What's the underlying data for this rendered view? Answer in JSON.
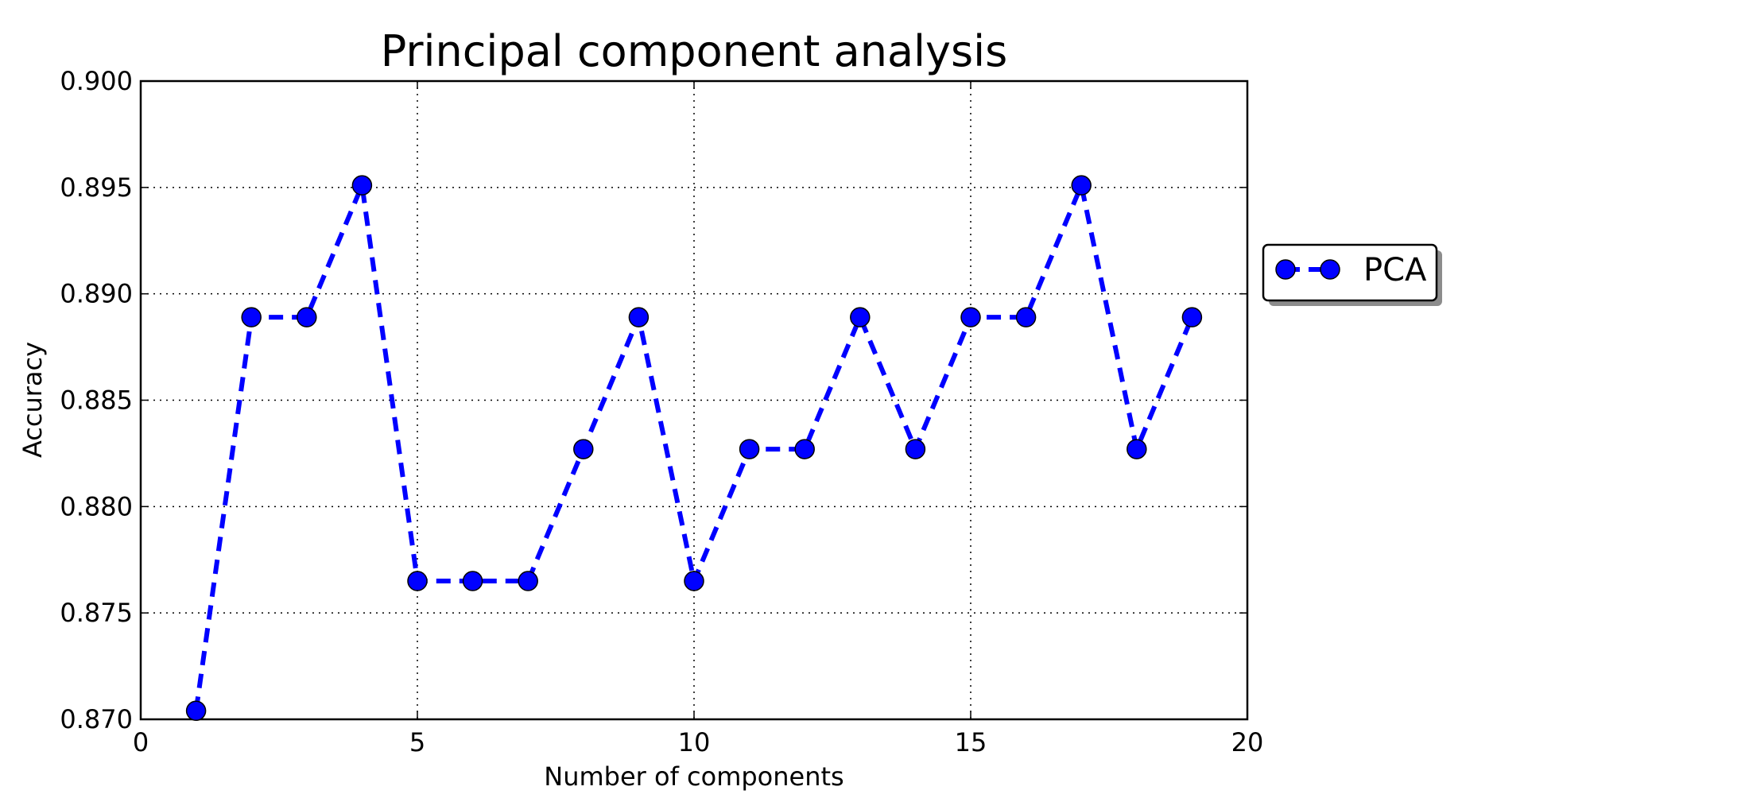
{
  "chart_data": {
    "type": "line",
    "title": "Principal component analysis",
    "xlabel": "Number of components",
    "ylabel": "Accuracy",
    "xlim": [
      0,
      20
    ],
    "ylim": [
      0.87,
      0.9
    ],
    "x_ticks": [
      0,
      5,
      10,
      15,
      20
    ],
    "x_tick_labels": [
      "0",
      "5",
      "10",
      "15",
      "20"
    ],
    "y_ticks": [
      0.87,
      0.875,
      0.88,
      0.885,
      0.89,
      0.895,
      0.9
    ],
    "y_tick_labels": [
      "0.870",
      "0.875",
      "0.880",
      "0.885",
      "0.890",
      "0.895",
      "0.900"
    ],
    "grid": true,
    "legend_position": "right, outside plot",
    "series": [
      {
        "name": "PCA",
        "color": "#0000ff",
        "line_style": "dashed",
        "marker": "circle",
        "x": [
          1,
          2,
          3,
          4,
          5,
          6,
          7,
          8,
          9,
          10,
          11,
          12,
          13,
          14,
          15,
          16,
          17,
          18,
          19
        ],
        "y": [
          0.8704,
          0.8889,
          0.8889,
          0.8951,
          0.8765,
          0.8765,
          0.8765,
          0.8827,
          0.8889,
          0.8765,
          0.8827,
          0.8827,
          0.8889,
          0.8827,
          0.8889,
          0.8889,
          0.8951,
          0.8827,
          0.8889
        ]
      }
    ]
  }
}
